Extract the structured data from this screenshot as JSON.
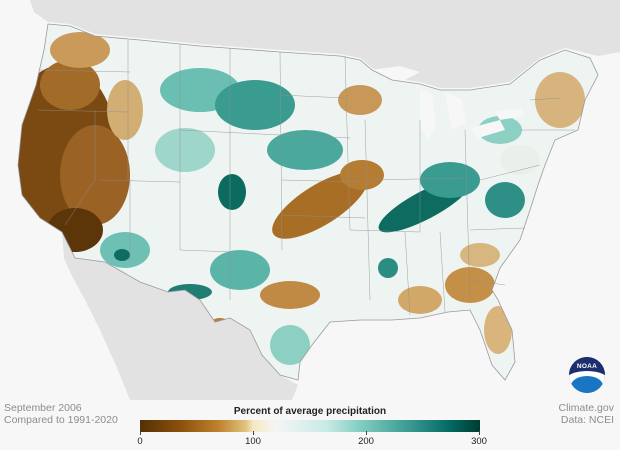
{
  "map": {
    "title": "Percent of average precipitation",
    "period": "September 2006",
    "baseline": "Compared to 1991-2020",
    "credit": "Climate.gov",
    "source": "Data: NCEI",
    "logo_text": "NOAA",
    "legend": {
      "ticks": [
        "0",
        "100",
        "200",
        "300"
      ],
      "tick_values": [
        0,
        100,
        200,
        300
      ],
      "range": [
        0,
        300
      ],
      "colors": [
        "#543005",
        "#8c510a",
        "#bf812d",
        "#dfc27d",
        "#f6e8c3",
        "#f5f5f5",
        "#c7eae5",
        "#80cdc1",
        "#35978f",
        "#01665e",
        "#003c30"
      ]
    }
  }
}
